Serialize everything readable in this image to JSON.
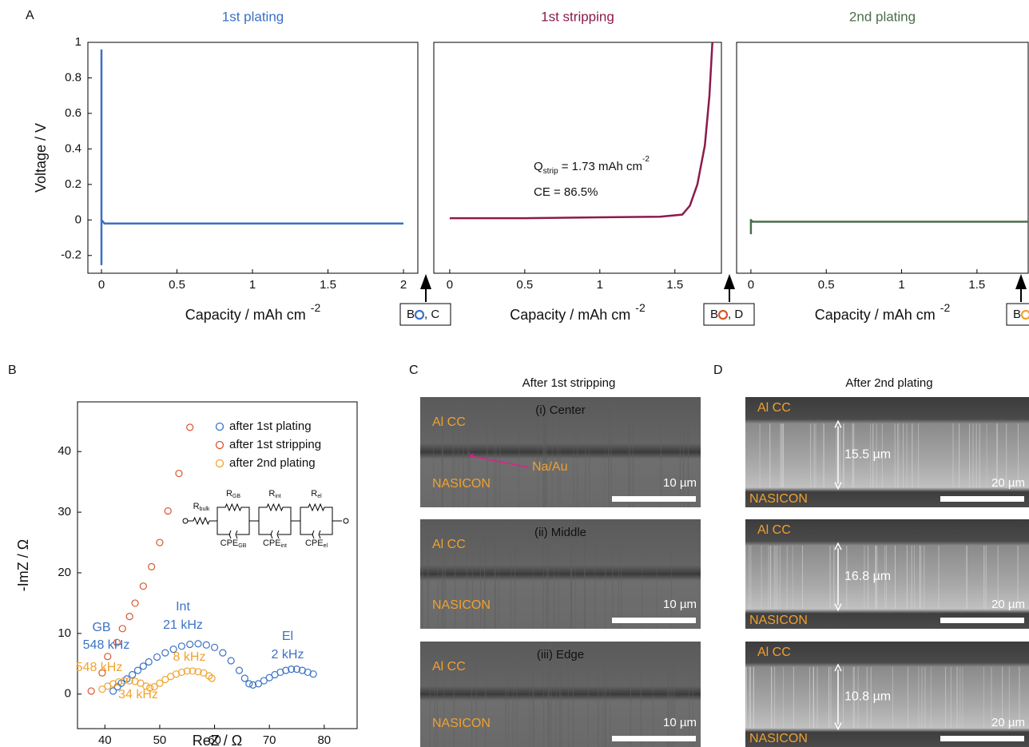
{
  "chart_data": [
    {
      "type": "line",
      "title": "1st plating",
      "color": "#3b6fc4",
      "ylabel": "Voltage / V",
      "xlabel": "Capacity / mAh cm",
      "xlabel_sup": "-2",
      "xlim": [
        -0.09,
        2.095
      ],
      "ylim": [
        -0.3,
        1
      ],
      "xticks": [
        0,
        0.5,
        1,
        1.5,
        2
      ],
      "yticks": [
        -0.2,
        0,
        0.2,
        0.4,
        0.6,
        0.8,
        1
      ],
      "x": [
        0,
        0,
        0,
        0.02,
        0.05,
        0.5,
        1,
        1.5,
        2
      ],
      "values": [
        0.96,
        -0.25,
        0.0,
        -0.02,
        -0.02,
        -0.02,
        -0.02,
        -0.02,
        -0.02
      ],
      "marker": {
        "before": "B",
        "after": ", C",
        "color": "#3b73c4"
      }
    },
    {
      "type": "line",
      "title": "1st stripping",
      "color": "#8b1a4a",
      "xlabel": "Capacity / mAh cm",
      "xlabel_sup": "-2",
      "xlim": [
        -0.106,
        1.81
      ],
      "ylim": [
        -0.3,
        1
      ],
      "xticks": [
        0,
        0.5,
        1,
        1.5
      ],
      "x": [
        0,
        0.5,
        1,
        1.4,
        1.55,
        1.6,
        1.65,
        1.7,
        1.73,
        1.75
      ],
      "values": [
        0.01,
        0.01,
        0.015,
        0.018,
        0.03,
        0.08,
        0.2,
        0.42,
        0.7,
        1.0
      ],
      "annotations": [
        [
          {
            "text": "Q"
          },
          {
            "text": "strip",
            "style": "sub"
          },
          {
            "text": " = 1.73 mAh cm"
          },
          {
            "text": "-2",
            "style": "sup"
          }
        ],
        [
          {
            "text": "CE = 86.5%"
          }
        ]
      ],
      "marker": {
        "before": "B",
        "after": ", D",
        "color": "#d9552b"
      }
    },
    {
      "type": "line",
      "title": "2nd plating",
      "color": "#4a6e4a",
      "xlabel": "Capacity / mAh cm",
      "xlabel_sup": "-2",
      "xlim": [
        -0.095,
        1.84
      ],
      "ylim": [
        -0.3,
        1
      ],
      "xticks": [
        0,
        0.5,
        1,
        1.5
      ],
      "x": [
        0,
        0,
        0.01,
        0.5,
        1,
        1.5,
        1.84
      ],
      "values": [
        -0.08,
        0.0,
        -0.01,
        -0.01,
        -0.01,
        -0.01,
        -0.01
      ],
      "marker": {
        "before": "B",
        "color": "#f0a22e"
      }
    },
    {
      "type": "scatter",
      "xlabel": "ReZ /  Ω",
      "ylabel": "-ImZ /  Ω",
      "xlim": [
        35,
        86
      ],
      "ylim": [
        -5.7,
        48.2
      ],
      "xticks": [
        40,
        50,
        60,
        70,
        80
      ],
      "yticks": [
        0,
        10,
        20,
        30,
        40
      ],
      "legend": "upper right",
      "series": [
        {
          "name": "after 1st plating",
          "color": "#3b73c4",
          "x": [
            41.5,
            42.3,
            43,
            44,
            45,
            46,
            47,
            48,
            49.5,
            51,
            52.5,
            54,
            55.5,
            57,
            58.5,
            60,
            61.5,
            63,
            64.5,
            65.5,
            66.3,
            67,
            68,
            69,
            70,
            71,
            72,
            73,
            74,
            75,
            76,
            77,
            78
          ],
          "values": [
            0.5,
            1.2,
            1.8,
            2.5,
            3.2,
            3.9,
            4.6,
            5.3,
            6.1,
            6.8,
            7.4,
            7.9,
            8.2,
            8.3,
            8.1,
            7.7,
            6.8,
            5.5,
            3.9,
            2.6,
            1.7,
            1.5,
            1.7,
            2.2,
            2.7,
            3.2,
            3.6,
            3.9,
            4.1,
            4.1,
            3.9,
            3.6,
            3.3
          ]
        },
        {
          "name": "after 1st stripping",
          "color": "#d9552b",
          "x": [
            37.5,
            39.5,
            40.5,
            42.2,
            43.2,
            44.5,
            45.5,
            47,
            48.5,
            50,
            51.5,
            53.5,
            55.5
          ],
          "values": [
            0.5,
            3.5,
            6.2,
            8.5,
            10.8,
            12.8,
            15,
            17.8,
            21,
            25,
            30.2,
            36.4,
            44
          ]
        },
        {
          "name": "after 2nd plating",
          "color": "#f0a22e",
          "x": [
            39.5,
            40.5,
            41.5,
            42.5,
            43.5,
            44.5,
            45.5,
            46.5,
            47.5,
            48.2,
            49,
            50,
            51,
            52,
            53,
            54,
            55,
            56,
            57,
            58,
            59,
            59.5
          ],
          "values": [
            0.8,
            1.3,
            1.7,
            2,
            2.2,
            2.2,
            2.1,
            1.8,
            1.3,
            1.0,
            1.2,
            1.8,
            2.4,
            2.9,
            3.3,
            3.6,
            3.8,
            3.8,
            3.7,
            3.5,
            3,
            2.6
          ]
        }
      ],
      "annotations": [
        {
          "text": "GB",
          "color": "#3b73c4"
        },
        {
          "text": "548 kHz",
          "color": "#3b73c4"
        },
        {
          "text": "Int",
          "color": "#3b73c4"
        },
        {
          "text": "21 kHz",
          "color": "#3b73c4"
        },
        {
          "text": "El",
          "color": "#3b73c4"
        },
        {
          "text": "2 kHz",
          "color": "#3b73c4"
        },
        {
          "text": "548 kHz",
          "color": "#f0a22e"
        },
        {
          "text": "8 kHz",
          "color": "#f0a22e"
        },
        {
          "text": "34 kHz",
          "color": "#f0a22e"
        }
      ],
      "circuit": [
        {
          "main": "R",
          "sub": "bulk"
        },
        {
          "main": "R",
          "sub": "GB"
        },
        {
          "main": "CPE",
          "sub": "GB"
        },
        {
          "main": "R",
          "sub": "int"
        },
        {
          "main": "CPE",
          "sub": "int"
        },
        {
          "main": "R",
          "sub": "el"
        },
        {
          "main": "CPE",
          "sub": "el"
        }
      ]
    }
  ],
  "panel_labels": [
    "A",
    "B",
    "C",
    "D"
  ],
  "sem": {
    "c_title": "After 1st stripping",
    "d_title": "After 2nd plating",
    "c_rows": [
      {
        "title": "(i) Center",
        "top": "Al CC",
        "bottom": "NASICON",
        "scale": "10 µm",
        "callout": "Na/Au"
      },
      {
        "title": "(ii) Middle",
        "top": "Al CC",
        "bottom": "NASICON",
        "scale": "10 µm"
      },
      {
        "title": "(iii) Edge",
        "top": "Al CC",
        "bottom": "NASICON",
        "scale": "10 µm"
      }
    ],
    "d_rows": [
      {
        "top": "Al CC",
        "bottom": "NASICON",
        "scale": "20 µm",
        "thickness": "15.5 µm"
      },
      {
        "top": "Al CC",
        "bottom": "NASICON",
        "scale": "20 µm",
        "thickness": "16.8 µm"
      },
      {
        "top": "Al CC",
        "bottom": "NASICON",
        "scale": "20 µm",
        "thickness": "10.8 µm"
      }
    ]
  }
}
